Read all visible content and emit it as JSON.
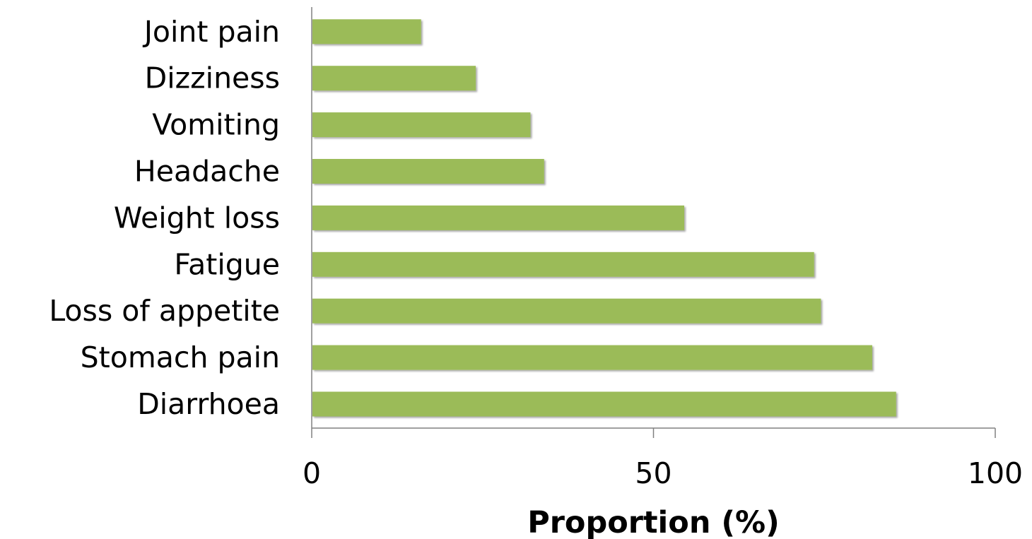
{
  "chart_data": {
    "type": "bar",
    "orientation": "horizontal",
    "categories": [
      "Diarrhoea",
      "Stomach pain",
      "Loss of appetite",
      "Fatigue",
      "Weight loss",
      "Headache",
      "Vomiting",
      "Dizziness",
      "Joint pain"
    ],
    "values": [
      85.5,
      82,
      74.5,
      73.5,
      54.5,
      34,
      32,
      24,
      16
    ],
    "title": "",
    "xlabel": "Proportion (%)",
    "ylabel": "",
    "xlim": [
      0,
      100
    ],
    "xticks": [
      0,
      50,
      100
    ],
    "xtick_labels": [
      "0",
      "50",
      "100"
    ],
    "grid": false,
    "legend": "none",
    "bar_color": "#9bbb59"
  }
}
